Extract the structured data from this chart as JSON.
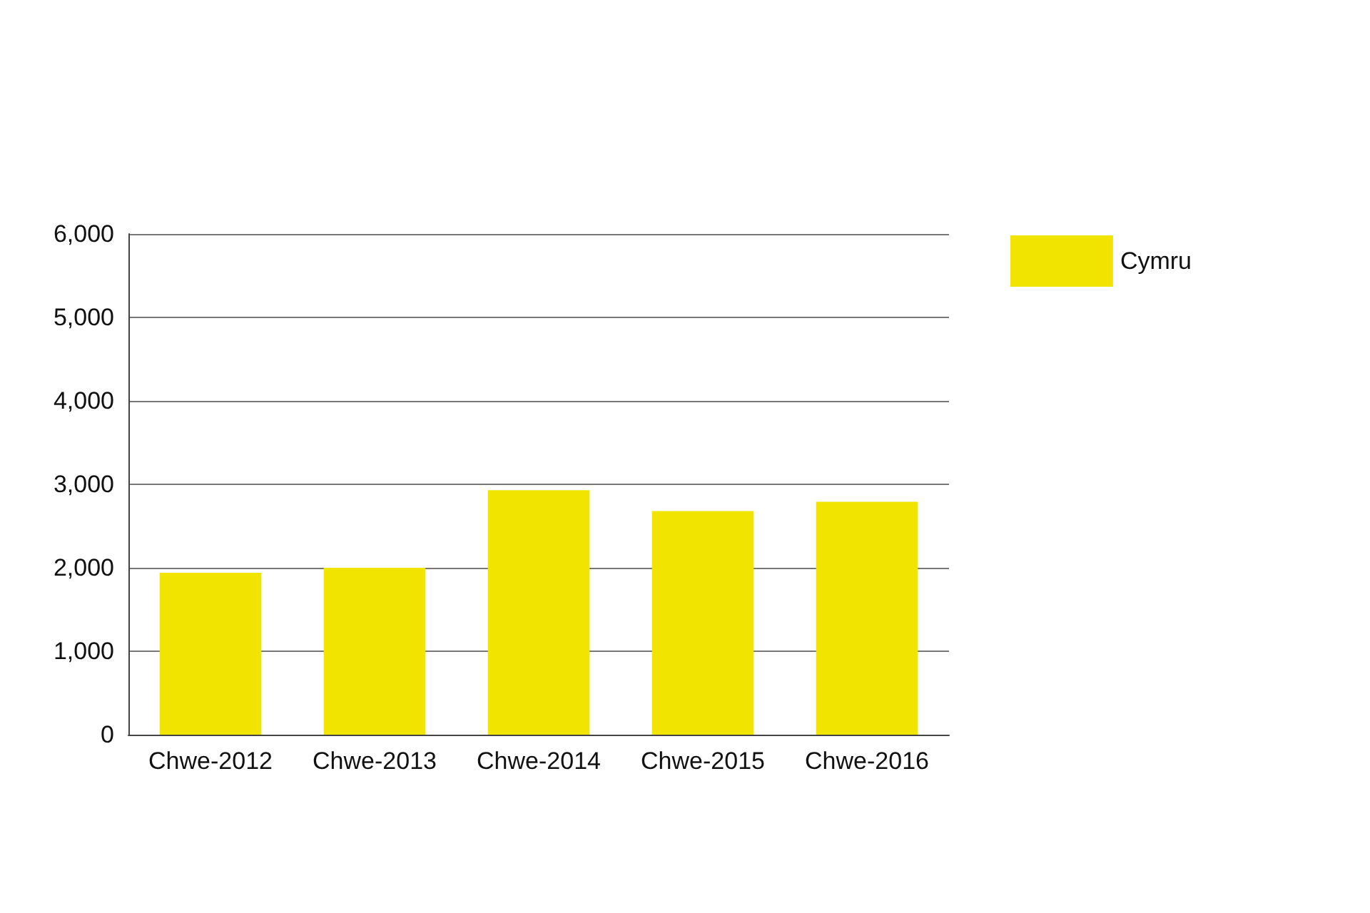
{
  "chart_data": {
    "type": "bar",
    "categories": [
      "Chwe-2012",
      "Chwe-2013",
      "Chwe-2014",
      "Chwe-2015",
      "Chwe-2016"
    ],
    "series": [
      {
        "name": "Cymru",
        "color": "#f0e400",
        "values": [
          1940,
          2000,
          2930,
          2680,
          2790
        ]
      }
    ],
    "ylim": [
      0,
      6000
    ],
    "yticks": [
      {
        "value": 0,
        "label": "0"
      },
      {
        "value": 1000,
        "label": "1,000"
      },
      {
        "value": 2000,
        "label": "2,000"
      },
      {
        "value": 3000,
        "label": "3,000"
      },
      {
        "value": 4000,
        "label": "4,000"
      },
      {
        "value": 5000,
        "label": "5,000"
      },
      {
        "value": 6000,
        "label": "6,000"
      }
    ],
    "grid": "y",
    "legend": "top right"
  }
}
